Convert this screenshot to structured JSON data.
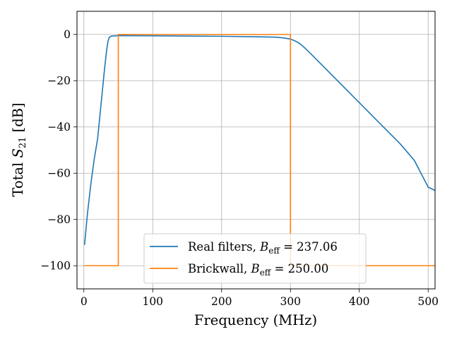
{
  "chart_data": {
    "type": "line",
    "xlabel": "Frequency (MHz)",
    "ylabel": "Total S21 [dB]",
    "xlim": [
      -10,
      510
    ],
    "ylim": [
      -110,
      10
    ],
    "xticks": [
      0,
      100,
      200,
      300,
      400,
      500
    ],
    "yticks": [
      0,
      -20,
      -40,
      -60,
      -80,
      -100
    ],
    "grid": true,
    "legend_position": "lower-center",
    "series": [
      {
        "name": "Real filters, B_eff = 237.06",
        "legend_prefix": "Real filters, ",
        "legend_var": "B",
        "legend_sub": "eff",
        "legend_value": "= 237.06",
        "color": "#1f77b4",
        "x": [
          1,
          5,
          10,
          15,
          20,
          25,
          30,
          33,
          35,
          37,
          40,
          50,
          100,
          150,
          200,
          250,
          280,
          290,
          300,
          305,
          310,
          315,
          320,
          330,
          340,
          350,
          360,
          380,
          400,
          420,
          440,
          450,
          460,
          480,
          500,
          510
        ],
        "y": [
          -91,
          -78,
          -65,
          -54,
          -45,
          -30,
          -15,
          -7,
          -3,
          -1.2,
          -0.7,
          -0.5,
          -0.6,
          -0.7,
          -0.8,
          -1.0,
          -1.2,
          -1.5,
          -2.0,
          -2.6,
          -3.3,
          -4.3,
          -5.6,
          -8.5,
          -11.5,
          -14.5,
          -17.5,
          -23.5,
          -29.5,
          -35.5,
          -41.5,
          -44.5,
          -47.5,
          -54.5,
          -66.0,
          -67.5
        ]
      },
      {
        "name": "Brickwall, B_eff = 250.00",
        "legend_prefix": "Brickwall, ",
        "legend_var": "B",
        "legend_sub": "eff",
        "legend_value": "= 250.00",
        "color": "#ff7f0e",
        "x": [
          0,
          50,
          50,
          300,
          300,
          510
        ],
        "y": [
          -100,
          -100,
          0,
          0,
          -100,
          -100
        ]
      }
    ]
  }
}
